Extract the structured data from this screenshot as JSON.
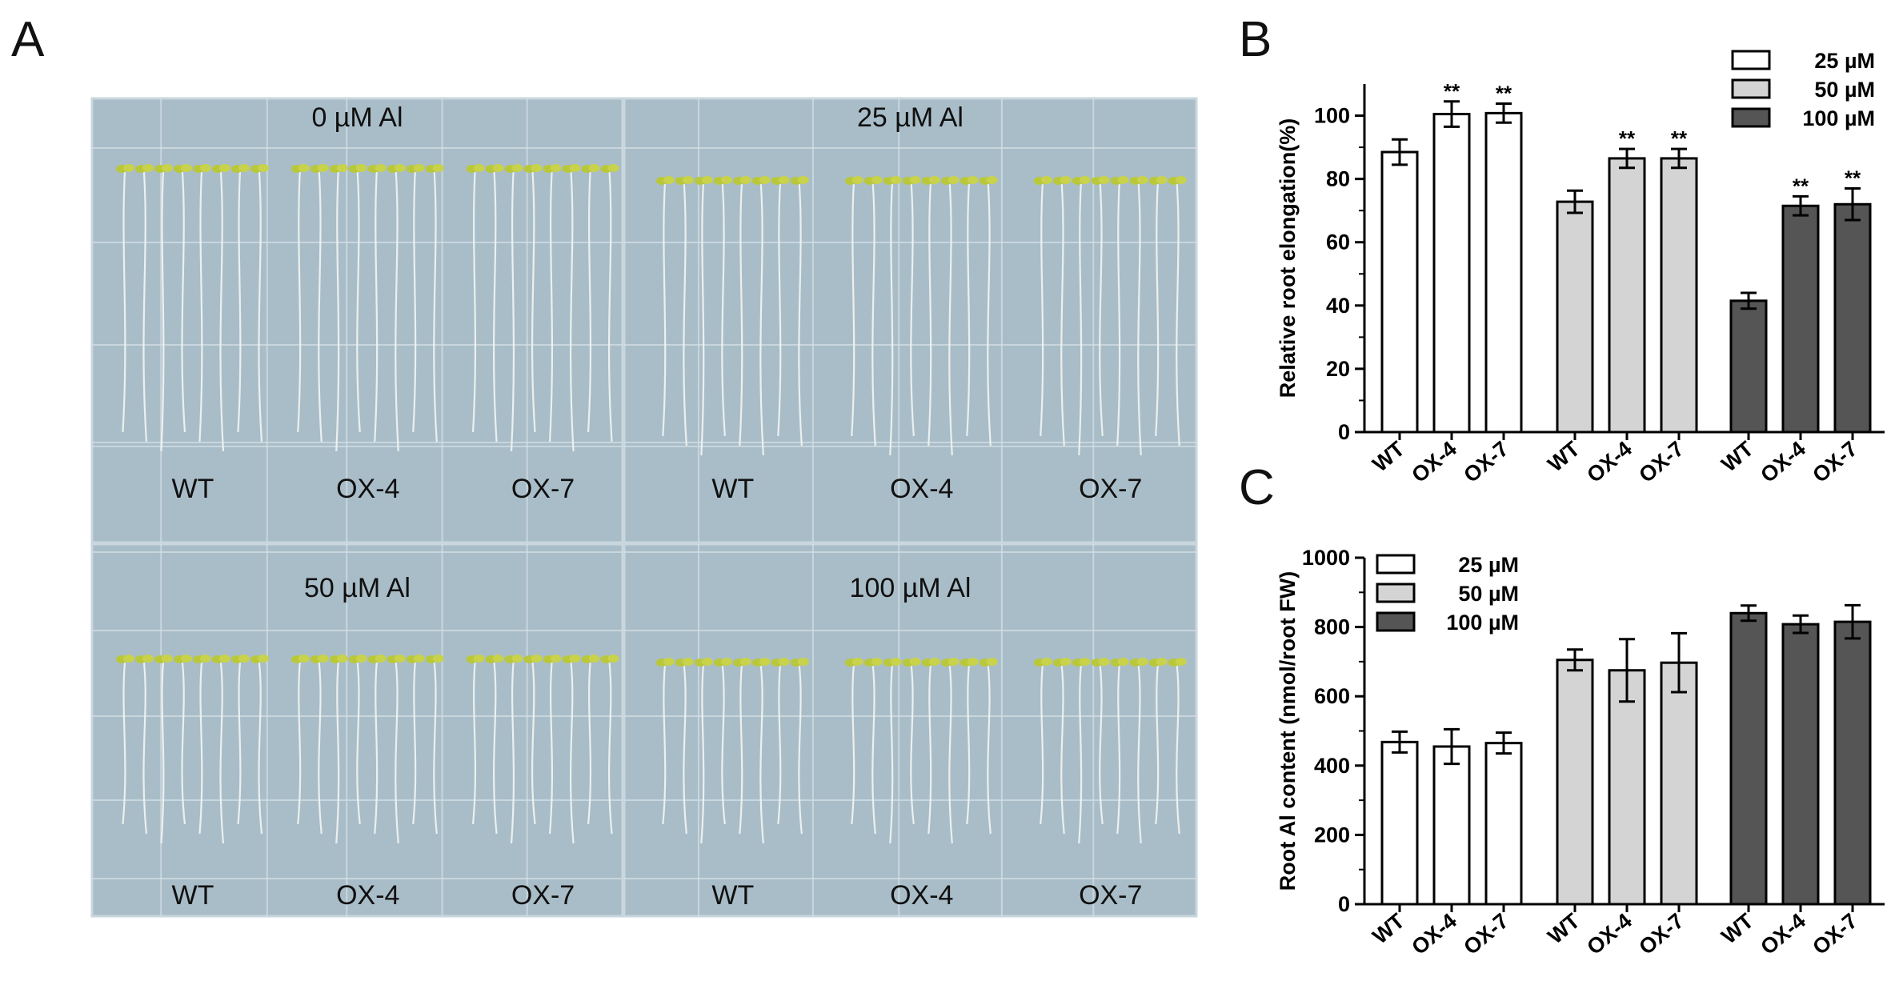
{
  "panel_labels": {
    "a": "A",
    "b": "B",
    "c": "C"
  },
  "photo": {
    "plates": [
      {
        "condition": "0 µM Al",
        "genotypes": [
          "WT",
          "OX-4",
          "OX-7"
        ]
      },
      {
        "condition": "25 µM Al",
        "genotypes": [
          "WT",
          "OX-4",
          "OX-7"
        ]
      },
      {
        "condition": "50 µM Al",
        "genotypes": [
          "WT",
          "OX-4",
          "OX-7"
        ]
      },
      {
        "condition": "100 µM Al",
        "genotypes": [
          "WT",
          "OX-4",
          "OX-7"
        ]
      }
    ],
    "colors": {
      "plate": "#a9bdc8",
      "grid": "#d6e1e7",
      "seedling": "#b9c83a",
      "root": "#f2f5f2"
    }
  },
  "chart_data": [
    {
      "panel": "B",
      "type": "bar",
      "ylabel": "Relative root elongation(%)",
      "ylim": [
        0,
        110
      ],
      "yticks": [
        "0",
        "20",
        "40",
        "60",
        "80",
        "100"
      ],
      "categories": [
        "WT",
        "OX-4",
        "OX-7"
      ],
      "series": [
        {
          "name": "25 µM",
          "color": "#ffffff",
          "values": [
            88.5,
            100.5,
            100.8
          ],
          "errors": [
            4,
            4,
            3
          ],
          "sig": [
            "",
            "**",
            "**"
          ]
        },
        {
          "name": "50 µM",
          "color": "#d4d4d4",
          "values": [
            72.8,
            86.5,
            86.5
          ],
          "errors": [
            3.5,
            3,
            3
          ],
          "sig": [
            "",
            "**",
            "**"
          ]
        },
        {
          "name": "100 µM",
          "color": "#555555",
          "values": [
            41.5,
            71.5,
            72.0
          ],
          "errors": [
            2.5,
            3,
            5
          ],
          "sig": [
            "",
            "**",
            "**"
          ]
        }
      ]
    },
    {
      "panel": "C",
      "type": "bar",
      "ylabel": "Root Al content (nmol/root FW)",
      "ylim": [
        0,
        1000
      ],
      "yticks": [
        "0",
        "200",
        "400",
        "600",
        "800",
        "1000"
      ],
      "categories": [
        "WT",
        "OX-4",
        "OX-7"
      ],
      "series": [
        {
          "name": "25 µM",
          "color": "#ffffff",
          "values": [
            468,
            455,
            465
          ],
          "errors": [
            30,
            50,
            30
          ]
        },
        {
          "name": "50 µM",
          "color": "#d4d4d4",
          "values": [
            705,
            675,
            697
          ],
          "errors": [
            30,
            90,
            85
          ]
        },
        {
          "name": "100 µM",
          "color": "#555555",
          "values": [
            840,
            808,
            815
          ],
          "errors": [
            22,
            25,
            48
          ]
        }
      ]
    }
  ]
}
